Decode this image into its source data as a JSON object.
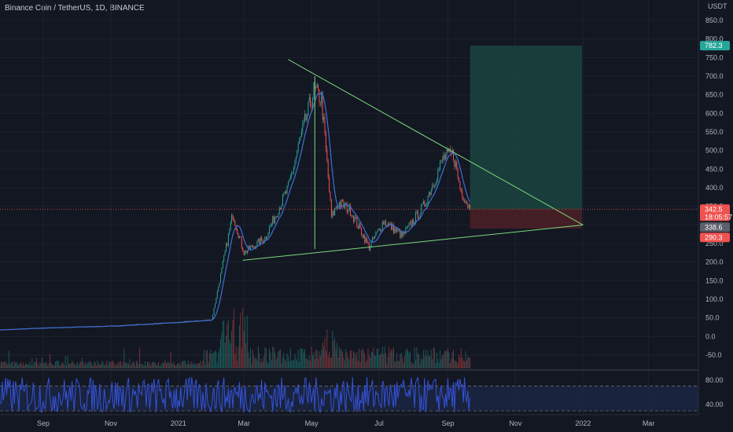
{
  "header": {
    "title": "Binance Coin / TetherUS, 1D, BINANCE",
    "currency": "USDT"
  },
  "colors": {
    "background": "#131722",
    "grid": "#1e2230",
    "up": "#26a69a",
    "down": "#ef5350",
    "ma": "#3f6fd8",
    "trendline": "#7bd97b",
    "target_zone": "#1b4440",
    "stop_zone": "#4a1f26",
    "oscillator": "#3552d8",
    "osc_band": "#1c2745"
  },
  "chart_data": [
    {
      "type": "candlestick",
      "title": "Binance Coin / TetherUS, 1D, BINANCE",
      "ylim": [
        -90,
        905
      ],
      "y_ticks": [
        850,
        800,
        750,
        700,
        650,
        600,
        550,
        500,
        450,
        400,
        350,
        300,
        250,
        200,
        150,
        100,
        50,
        0,
        -50
      ],
      "y_tick_labels": [
        "850.0",
        "800.0",
        "750.0",
        "700.0",
        "650.0",
        "600.0",
        "550.0",
        "500.0",
        "450.0",
        "400.0",
        "350.0",
        "300.0",
        "250.0",
        "200.0",
        "150.0",
        "100.0",
        "50.0",
        "0.0",
        "-50.0"
      ],
      "x_ticks": [
        "2020-09-01",
        "2020-11-01",
        "2021-01-01",
        "2021-03-01",
        "2021-05-01",
        "2021-07-01",
        "2021-09-01",
        "2021-11-01",
        "2022-01-01",
        "2022-03-01"
      ],
      "x_tick_labels": [
        "Sep",
        "Nov",
        "2021",
        "Mar",
        "May",
        "Jul",
        "Sep",
        "Nov",
        "2022",
        "Mar"
      ],
      "price_path": [
        [
          "2020-07-24",
          18
        ],
        [
          "2020-09-01",
          23
        ],
        [
          "2020-11-01",
          28
        ],
        [
          "2021-01-01",
          38
        ],
        [
          "2021-01-31",
          45
        ],
        [
          "2021-02-19",
          330
        ],
        [
          "2021-03-01",
          225
        ],
        [
          "2021-03-20",
          265
        ],
        [
          "2021-04-10",
          400
        ],
        [
          "2021-04-20",
          520
        ],
        [
          "2021-05-03",
          660
        ],
        [
          "2021-05-10",
          640
        ],
        [
          "2021-05-19",
          320
        ],
        [
          "2021-05-25",
          360
        ],
        [
          "2021-06-05",
          340
        ],
        [
          "2021-06-22",
          240
        ],
        [
          "2021-07-05",
          310
        ],
        [
          "2021-07-22",
          270
        ],
        [
          "2021-08-10",
          350
        ],
        [
          "2021-08-28",
          480
        ],
        [
          "2021-09-06",
          490
        ],
        [
          "2021-09-12",
          400
        ],
        [
          "2021-09-21",
          342.5
        ]
      ],
      "last_price": "342.5",
      "countdown": "18:05:57",
      "prev_close": "338.6",
      "target_price": "782.3",
      "stop_price": "290.3",
      "position": {
        "start": "2021-09-21",
        "end": "2021-12-31",
        "entry": 342.5,
        "target": 782.3,
        "stop": 290.3
      },
      "trendlines": [
        {
          "from": [
            "2021-04-10",
            745
          ],
          "to": [
            "2022-01-01",
            300
          ]
        },
        {
          "from": [
            "2021-02-28",
            205
          ],
          "to": [
            "2022-01-01",
            300
          ]
        },
        {
          "from": [
            "2021-05-04",
            235
          ],
          "to": [
            "2021-05-04",
            700
          ]
        }
      ]
    },
    {
      "type": "line",
      "name": "oscillator",
      "ylim": [
        25,
        95
      ],
      "y_ticks": [
        80,
        40
      ],
      "y_tick_labels": [
        "80.00",
        "40.00"
      ],
      "bands": [
        70,
        30
      ]
    }
  ]
}
